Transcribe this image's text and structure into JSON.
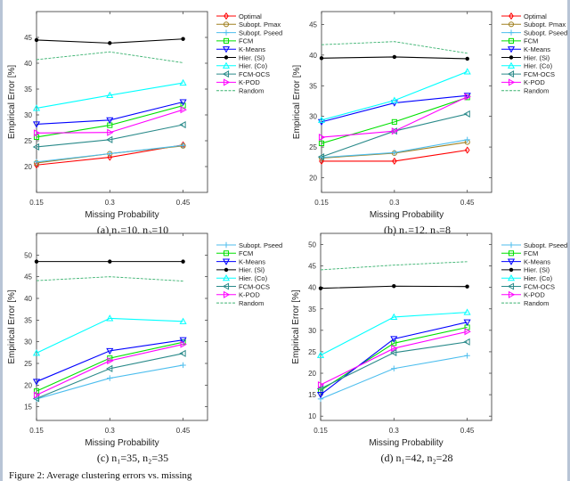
{
  "figure_caption": "Figure 2: Average clustering errors vs. missing",
  "chart_data": [
    {
      "type": "line",
      "caption": "(a) n₁=10, n₂=10",
      "xlabel": "Missing Probability",
      "ylabel": "Empirical Error [%]",
      "x": [
        0.15,
        0.3,
        0.45
      ],
      "xticks": [
        "0.15",
        "0.3",
        "0.45"
      ],
      "xlim": [
        0.15,
        0.5
      ],
      "yticks": [
        "20",
        "25",
        "30",
        "35",
        "40",
        "45"
      ],
      "ylim": [
        15,
        50
      ],
      "grid": false,
      "legend": "right",
      "series": [
        {
          "name": "Optimal",
          "color": "#ff0000",
          "marker": "diamond",
          "values": [
            20.3,
            21.8,
            24.2
          ]
        },
        {
          "name": "Subopt. Pmax",
          "color": "#a08020",
          "marker": "circle",
          "values": [
            20.7,
            22.5,
            24.0
          ]
        },
        {
          "name": "Subopt. Pseed",
          "color": "#4dbeee",
          "marker": "plus",
          "values": [
            20.9,
            22.5,
            24.1
          ]
        },
        {
          "name": "FCM",
          "color": "#00e000",
          "marker": "square",
          "values": [
            25.7,
            28.0,
            31.8
          ]
        },
        {
          "name": "K-Means",
          "color": "#0000ff",
          "marker": "triangle-down",
          "values": [
            28.2,
            29.0,
            32.5
          ]
        },
        {
          "name": "Hier. (Si)",
          "color": "#000000",
          "marker": "dot",
          "values": [
            44.5,
            43.9,
            44.7
          ]
        },
        {
          "name": "Hier. (Co)",
          "color": "#00ffff",
          "marker": "triangle-up",
          "values": [
            31.3,
            33.8,
            36.2
          ]
        },
        {
          "name": "FCM-OCS",
          "color": "#2a8a8a",
          "marker": "triangle-left",
          "values": [
            23.8,
            25.2,
            28.1
          ]
        },
        {
          "name": "K-POD",
          "color": "#ff00ff",
          "marker": "triangle-right",
          "values": [
            26.5,
            26.6,
            31.0
          ]
        },
        {
          "name": "Random",
          "color": "#3cb371",
          "marker": "none",
          "dashed": true,
          "values": [
            40.7,
            42.2,
            40.1
          ]
        }
      ]
    },
    {
      "type": "line",
      "caption": "(b) n₁=12, n₂=8",
      "xlabel": "Missing Probability",
      "ylabel": "Empirical Error [%]",
      "x": [
        0.15,
        0.3,
        0.45
      ],
      "xticks": [
        "0.15",
        "0.3",
        "0.45"
      ],
      "xlim": [
        0.15,
        0.5
      ],
      "yticks": [
        "20",
        "25",
        "30",
        "35",
        "40",
        "45"
      ],
      "ylim": [
        17.6,
        47.1
      ],
      "grid": false,
      "legend": "right",
      "series": [
        {
          "name": "Optimal",
          "color": "#ff0000",
          "marker": "diamond",
          "values": [
            22.7,
            22.7,
            24.5
          ]
        },
        {
          "name": "Subopt. Pmax",
          "color": "#a08020",
          "marker": "circle",
          "values": [
            23.2,
            24.0,
            25.8
          ]
        },
        {
          "name": "Subopt. Pseed",
          "color": "#4dbeee",
          "marker": "plus",
          "values": [
            23.3,
            24.1,
            26.2
          ]
        },
        {
          "name": "FCM",
          "color": "#00e000",
          "marker": "square",
          "values": [
            25.6,
            29.1,
            33.1
          ]
        },
        {
          "name": "K-Means",
          "color": "#0000ff",
          "marker": "triangle-down",
          "values": [
            29.1,
            32.2,
            33.4
          ]
        },
        {
          "name": "Hier. (Si)",
          "color": "#000000",
          "marker": "dot",
          "values": [
            39.5,
            39.7,
            39.4
          ]
        },
        {
          "name": "Hier. (Co)",
          "color": "#00ffff",
          "marker": "triangle-up",
          "values": [
            29.4,
            32.6,
            37.3
          ]
        },
        {
          "name": "FCM-OCS",
          "color": "#2a8a8a",
          "marker": "triangle-left",
          "values": [
            23.4,
            27.6,
            30.4
          ]
        },
        {
          "name": "K-POD",
          "color": "#ff00ff",
          "marker": "triangle-right",
          "values": [
            26.6,
            27.6,
            33.2
          ]
        },
        {
          "name": "Random",
          "color": "#3cb371",
          "marker": "none",
          "dashed": true,
          "values": [
            41.7,
            42.2,
            40.3
          ]
        }
      ]
    },
    {
      "type": "line",
      "caption": "(c) n₁=35, n₂=35",
      "xlabel": "Missing Probability",
      "ylabel": "Empirical Error [%]",
      "x": [
        0.15,
        0.3,
        0.45
      ],
      "xticks": [
        "0.15",
        "0.3",
        "0.45"
      ],
      "xlim": [
        0.15,
        0.5
      ],
      "yticks": [
        "15",
        "20",
        "25",
        "30",
        "35",
        "40",
        "45",
        "50"
      ],
      "ylim": [
        11.85,
        55
      ],
      "grid": false,
      "legend": "right",
      "series": [
        {
          "name": "Subopt. Pseed",
          "color": "#4dbeee",
          "marker": "plus",
          "values": [
            16.8,
            21.6,
            24.6
          ]
        },
        {
          "name": "FCM",
          "color": "#00e000",
          "marker": "square",
          "values": [
            18.6,
            26.2,
            29.9
          ]
        },
        {
          "name": "K-Means",
          "color": "#0000ff",
          "marker": "triangle-down",
          "values": [
            20.8,
            27.9,
            30.4
          ]
        },
        {
          "name": "Hier. (Si)",
          "color": "#000000",
          "marker": "dot",
          "values": [
            48.5,
            48.5,
            48.5
          ]
        },
        {
          "name": "Hier. (Co)",
          "color": "#00ffff",
          "marker": "triangle-up",
          "values": [
            27.4,
            35.4,
            34.7
          ]
        },
        {
          "name": "FCM-OCS",
          "color": "#2a8a8a",
          "marker": "triangle-left",
          "values": [
            16.9,
            23.8,
            27.3
          ]
        },
        {
          "name": "K-POD",
          "color": "#ff00ff",
          "marker": "triangle-right",
          "values": [
            17.7,
            25.6,
            29.4
          ]
        },
        {
          "name": "Random",
          "color": "#3cb371",
          "marker": "none",
          "dashed": true,
          "values": [
            44.1,
            45.0,
            44.0
          ]
        }
      ]
    },
    {
      "type": "line",
      "caption": "(d) n₁=42, n₂=28",
      "xlabel": "Missing Probability",
      "ylabel": "Empirical Error [%]",
      "x": [
        0.15,
        0.3,
        0.45
      ],
      "xticks": [
        "0.15",
        "0.3",
        "0.45"
      ],
      "xlim": [
        0.15,
        0.5
      ],
      "yticks": [
        "10",
        "15",
        "20",
        "25",
        "30",
        "35",
        "40",
        "45",
        "50"
      ],
      "ylim": [
        9,
        52.6
      ],
      "grid": false,
      "legend": "right",
      "series": [
        {
          "name": "Subopt. Pseed",
          "color": "#4dbeee",
          "marker": "plus",
          "values": [
            14.0,
            21.1,
            24.1
          ]
        },
        {
          "name": "FCM",
          "color": "#00e000",
          "marker": "square",
          "values": [
            16.0,
            27.0,
            30.7
          ]
        },
        {
          "name": "K-Means",
          "color": "#0000ff",
          "marker": "triangle-down",
          "values": [
            15.0,
            28.0,
            31.9
          ]
        },
        {
          "name": "Hier. (Si)",
          "color": "#000000",
          "marker": "dot",
          "values": [
            39.8,
            40.3,
            40.2
          ]
        },
        {
          "name": "Hier. (Co)",
          "color": "#00ffff",
          "marker": "triangle-up",
          "values": [
            24.2,
            33.1,
            34.2
          ]
        },
        {
          "name": "FCM-OCS",
          "color": "#2a8a8a",
          "marker": "triangle-left",
          "values": [
            16.4,
            24.8,
            27.3
          ]
        },
        {
          "name": "K-POD",
          "color": "#ff00ff",
          "marker": "triangle-right",
          "values": [
            17.3,
            25.8,
            29.7
          ]
        },
        {
          "name": "Random",
          "color": "#3cb371",
          "marker": "none",
          "dashed": true,
          "values": [
            44.1,
            45.2,
            46.0
          ]
        }
      ]
    }
  ]
}
